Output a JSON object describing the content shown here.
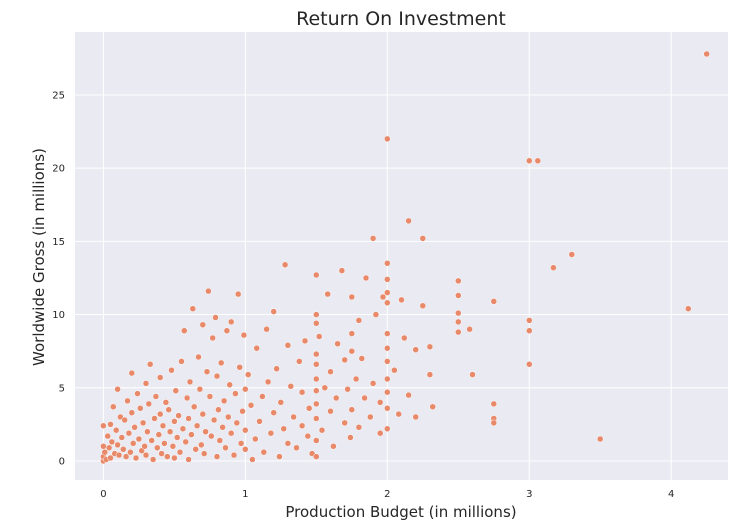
{
  "chart_data": {
    "type": "scatter",
    "title": "Return On Investment",
    "xlabel": "Production Budget (in millions)",
    "ylabel": "Worldwide Gross (in millions)",
    "xlim": [
      -0.2,
      4.4
    ],
    "ylim": [
      -1.3,
      29.3
    ],
    "xticks": [
      "0",
      "1",
      "2",
      "3",
      "4"
    ],
    "yticks": [
      "0",
      "5",
      "10",
      "15",
      "20",
      "25"
    ],
    "grid": true,
    "background": "#EAEAF2",
    "point_color": "#E8896A",
    "points": [
      [
        0,
        0
      ],
      [
        0,
        0.3
      ],
      [
        0,
        1.0
      ],
      [
        0,
        2.4
      ],
      [
        0.01,
        0.6
      ],
      [
        0.02,
        0.1
      ],
      [
        0.03,
        1.7
      ],
      [
        0.04,
        0.9
      ],
      [
        0.05,
        2.5
      ],
      [
        0.05,
        0.2
      ],
      [
        0.06,
        1.3
      ],
      [
        0.07,
        3.7
      ],
      [
        0.08,
        0.5
      ],
      [
        0.09,
        2.1
      ],
      [
        0.1,
        4.9
      ],
      [
        0.1,
        1.1
      ],
      [
        0.11,
        0.4
      ],
      [
        0.12,
        3.0
      ],
      [
        0.13,
        1.6
      ],
      [
        0.14,
        0.8
      ],
      [
        0.15,
        2.8
      ],
      [
        0.16,
        0.3
      ],
      [
        0.17,
        4.1
      ],
      [
        0.18,
        1.9
      ],
      [
        0.19,
        0.6
      ],
      [
        0.2,
        3.3
      ],
      [
        0.2,
        6.0
      ],
      [
        0.21,
        1.2
      ],
      [
        0.22,
        2.3
      ],
      [
        0.23,
        0.2
      ],
      [
        0.24,
        4.6
      ],
      [
        0.25,
        1.5
      ],
      [
        0.26,
        3.6
      ],
      [
        0.27,
        0.7
      ],
      [
        0.28,
        2.6
      ],
      [
        0.29,
        1.0
      ],
      [
        0.3,
        5.3
      ],
      [
        0.3,
        0.4
      ],
      [
        0.31,
        2.0
      ],
      [
        0.32,
        3.9
      ],
      [
        0.33,
        6.6
      ],
      [
        0.34,
        1.4
      ],
      [
        0.35,
        0.1
      ],
      [
        0.36,
        2.9
      ],
      [
        0.37,
        4.4
      ],
      [
        0.38,
        0.9
      ],
      [
        0.39,
        1.8
      ],
      [
        0.4,
        3.2
      ],
      [
        0.4,
        5.7
      ],
      [
        0.41,
        0.5
      ],
      [
        0.42,
        2.4
      ],
      [
        0.43,
        1.2
      ],
      [
        0.44,
        4.0
      ],
      [
        0.45,
        0.3
      ],
      [
        0.46,
        3.5
      ],
      [
        0.47,
        2.0
      ],
      [
        0.48,
        6.2
      ],
      [
        0.49,
        1.0
      ],
      [
        0.5,
        0.2
      ],
      [
        0.5,
        2.7
      ],
      [
        0.51,
        4.8
      ],
      [
        0.52,
        1.6
      ],
      [
        0.53,
        3.1
      ],
      [
        0.54,
        0.6
      ],
      [
        0.55,
        6.8
      ],
      [
        0.56,
        2.2
      ],
      [
        0.57,
        8.9
      ],
      [
        0.58,
        1.3
      ],
      [
        0.59,
        4.3
      ],
      [
        0.6,
        0.1
      ],
      [
        0.6,
        2.9
      ],
      [
        0.61,
        5.4
      ],
      [
        0.62,
        1.8
      ],
      [
        0.63,
        10.4
      ],
      [
        0.64,
        3.7
      ],
      [
        0.65,
        0.8
      ],
      [
        0.66,
        2.4
      ],
      [
        0.67,
        7.1
      ],
      [
        0.68,
        4.9
      ],
      [
        0.69,
        1.1
      ],
      [
        0.7,
        9.3
      ],
      [
        0.7,
        3.2
      ],
      [
        0.71,
        0.5
      ],
      [
        0.72,
        2.0
      ],
      [
        0.73,
        6.1
      ],
      [
        0.74,
        11.6
      ],
      [
        0.75,
        4.4
      ],
      [
        0.76,
        1.7
      ],
      [
        0.77,
        8.4
      ],
      [
        0.78,
        2.8
      ],
      [
        0.79,
        9.8
      ],
      [
        0.8,
        0.3
      ],
      [
        0.8,
        5.8
      ],
      [
        0.81,
        3.5
      ],
      [
        0.82,
        1.4
      ],
      [
        0.83,
        6.7
      ],
      [
        0.84,
        2.3
      ],
      [
        0.85,
        4.1
      ],
      [
        0.86,
        0.9
      ],
      [
        0.87,
        8.9
      ],
      [
        0.88,
        3.0
      ],
      [
        0.89,
        5.2
      ],
      [
        0.9,
        1.9
      ],
      [
        0.9,
        9.5
      ],
      [
        0.92,
        0.4
      ],
      [
        0.93,
        4.6
      ],
      [
        0.94,
        2.6
      ],
      [
        0.95,
        11.4
      ],
      [
        0.96,
        6.4
      ],
      [
        0.97,
        1.2
      ],
      [
        0.98,
        3.4
      ],
      [
        0.99,
        8.6
      ],
      [
        1.0,
        0.8
      ],
      [
        1.0,
        2.1
      ],
      [
        1.0,
        4.9
      ],
      [
        1.02,
        5.9
      ],
      [
        1.04,
        3.8
      ],
      [
        1.05,
        0.1
      ],
      [
        1.07,
        1.5
      ],
      [
        1.08,
        7.7
      ],
      [
        1.1,
        2.7
      ],
      [
        1.12,
        4.4
      ],
      [
        1.13,
        0.6
      ],
      [
        1.15,
        9.0
      ],
      [
        1.16,
        5.4
      ],
      [
        1.18,
        1.9
      ],
      [
        1.2,
        10.2
      ],
      [
        1.2,
        3.3
      ],
      [
        1.22,
        6.3
      ],
      [
        1.24,
        0.3
      ],
      [
        1.25,
        4.0
      ],
      [
        1.27,
        2.2
      ],
      [
        1.28,
        13.4
      ],
      [
        1.3,
        7.9
      ],
      [
        1.3,
        1.2
      ],
      [
        1.32,
        5.1
      ],
      [
        1.34,
        3.0
      ],
      [
        1.36,
        0.9
      ],
      [
        1.38,
        6.8
      ],
      [
        1.4,
        2.4
      ],
      [
        1.4,
        4.7
      ],
      [
        1.42,
        8.2
      ],
      [
        1.44,
        1.7
      ],
      [
        1.45,
        3.6
      ],
      [
        1.47,
        0.5
      ],
      [
        1.5,
        12.7
      ],
      [
        1.5,
        10.0
      ],
      [
        1.5,
        9.4
      ],
      [
        1.5,
        7.3
      ],
      [
        1.5,
        6.6
      ],
      [
        1.5,
        5.6
      ],
      [
        1.5,
        4.8
      ],
      [
        1.5,
        3.9
      ],
      [
        1.5,
        2.9
      ],
      [
        1.5,
        1.4
      ],
      [
        1.5,
        0.3
      ],
      [
        1.52,
        8.5
      ],
      [
        1.54,
        2.1
      ],
      [
        1.56,
        5.0
      ],
      [
        1.58,
        11.4
      ],
      [
        1.6,
        3.4
      ],
      [
        1.6,
        6.1
      ],
      [
        1.62,
        1.0
      ],
      [
        1.64,
        4.3
      ],
      [
        1.65,
        8.0
      ],
      [
        1.68,
        13.0
      ],
      [
        1.7,
        2.6
      ],
      [
        1.7,
        6.9
      ],
      [
        1.72,
        4.9
      ],
      [
        1.74,
        1.6
      ],
      [
        1.75,
        11.2
      ],
      [
        1.75,
        8.7
      ],
      [
        1.75,
        7.5
      ],
      [
        1.75,
        3.5
      ],
      [
        1.78,
        5.6
      ],
      [
        1.8,
        9.6
      ],
      [
        1.8,
        2.3
      ],
      [
        1.82,
        7.0
      ],
      [
        1.84,
        4.3
      ],
      [
        1.85,
        12.5
      ],
      [
        1.88,
        3.0
      ],
      [
        1.9,
        15.2
      ],
      [
        1.9,
        5.3
      ],
      [
        1.92,
        10.0
      ],
      [
        1.95,
        4.0
      ],
      [
        1.95,
        1.9
      ],
      [
        1.97,
        11.2
      ],
      [
        2.0,
        22.0
      ],
      [
        2.0,
        13.5
      ],
      [
        2.0,
        12.4
      ],
      [
        2.0,
        11.5
      ],
      [
        2.0,
        10.8
      ],
      [
        2.0,
        8.7
      ],
      [
        2.0,
        7.7
      ],
      [
        2.0,
        6.8
      ],
      [
        2.0,
        5.6
      ],
      [
        2.0,
        4.7
      ],
      [
        2.0,
        3.6
      ],
      [
        2.0,
        2.2
      ],
      [
        2.05,
        6.2
      ],
      [
        2.08,
        3.2
      ],
      [
        2.1,
        11.0
      ],
      [
        2.12,
        8.4
      ],
      [
        2.15,
        16.4
      ],
      [
        2.15,
        4.5
      ],
      [
        2.2,
        7.6
      ],
      [
        2.2,
        3.0
      ],
      [
        2.25,
        15.2
      ],
      [
        2.25,
        10.6
      ],
      [
        2.3,
        7.8
      ],
      [
        2.3,
        5.9
      ],
      [
        2.32,
        3.7
      ],
      [
        2.5,
        12.3
      ],
      [
        2.5,
        11.3
      ],
      [
        2.5,
        10.1
      ],
      [
        2.5,
        9.5
      ],
      [
        2.5,
        8.8
      ],
      [
        2.58,
        9.0
      ],
      [
        2.6,
        5.9
      ],
      [
        2.75,
        10.9
      ],
      [
        2.75,
        3.9
      ],
      [
        2.75,
        2.9
      ],
      [
        2.75,
        2.6
      ],
      [
        3.0,
        20.5
      ],
      [
        3.0,
        9.6
      ],
      [
        3.0,
        8.9
      ],
      [
        3.0,
        6.6
      ],
      [
        3.06,
        20.5
      ],
      [
        3.17,
        13.2
      ],
      [
        3.3,
        14.1
      ],
      [
        3.5,
        1.5
      ],
      [
        4.12,
        10.4
      ],
      [
        4.25,
        27.8
      ]
    ]
  }
}
